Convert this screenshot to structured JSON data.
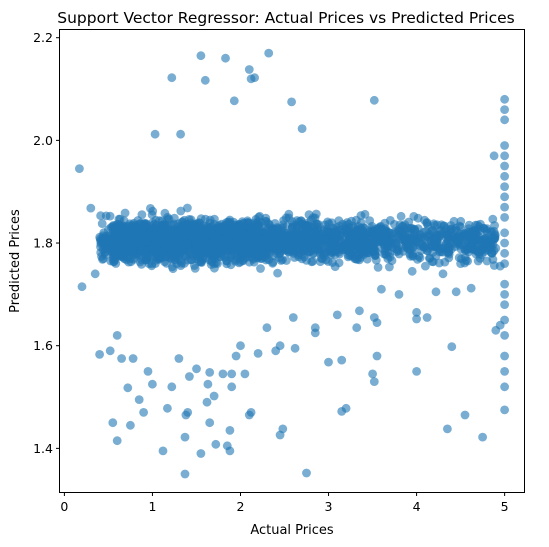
{
  "chart_data": {
    "type": "scatter",
    "title": "Support Vector Regressor: Actual Prices vs Predicted Prices",
    "xlabel": "Actual Prices",
    "ylabel": "Predicted Prices",
    "xlim": [
      -0.05,
      5.22
    ],
    "ylim": [
      1.315,
      2.215
    ],
    "x_ticks": [
      0,
      1,
      2,
      3,
      4,
      5
    ],
    "y_ticks": [
      1.4,
      1.6,
      1.8,
      2.0,
      2.2
    ],
    "x_tick_labels": [
      "0",
      "1",
      "2",
      "3",
      "4",
      "5"
    ],
    "y_tick_labels": [
      "1.4",
      "1.6",
      "1.8",
      "2.0",
      "2.2"
    ],
    "grid": false,
    "legend": "none",
    "marker_color": "#1f77b4",
    "marker_alpha": 0.6,
    "series": [
      {
        "values": [
          [
            1.55,
            2.165
          ],
          [
            1.83,
            2.16
          ],
          [
            2.32,
            2.17
          ],
          [
            1.22,
            2.122
          ],
          [
            1.6,
            2.117
          ],
          [
            2.1,
            2.138
          ],
          [
            2.12,
            2.12
          ],
          [
            2.16,
            2.122
          ],
          [
            1.93,
            2.077
          ],
          [
            2.58,
            2.075
          ],
          [
            3.52,
            2.078
          ],
          [
            2.7,
            2.023
          ],
          [
            1.03,
            2.012
          ],
          [
            1.32,
            2.012
          ],
          [
            0.17,
            1.945
          ],
          [
            4.88,
            1.97
          ],
          [
            5.0,
            2.08
          ],
          [
            5.0,
            2.06
          ],
          [
            5.0,
            2.04
          ],
          [
            5.0,
            1.99
          ],
          [
            5.0,
            1.97
          ],
          [
            5.0,
            1.95
          ],
          [
            5.0,
            1.93
          ],
          [
            5.0,
            1.91
          ],
          [
            5.0,
            1.89
          ],
          [
            5.0,
            1.87
          ],
          [
            5.0,
            1.85
          ],
          [
            5.0,
            1.82
          ],
          [
            5.0,
            1.8
          ],
          [
            5.0,
            1.78
          ],
          [
            5.0,
            1.76
          ],
          [
            5.0,
            1.72
          ],
          [
            5.0,
            1.7
          ],
          [
            5.0,
            1.68
          ],
          [
            5.0,
            1.65
          ],
          [
            5.0,
            1.62
          ],
          [
            5.0,
            1.58
          ],
          [
            5.0,
            1.55
          ],
          [
            5.0,
            1.52
          ],
          [
            5.0,
            1.475
          ],
          [
            0.2,
            1.715
          ],
          [
            0.3,
            1.868
          ],
          [
            0.35,
            1.74
          ],
          [
            0.4,
            1.583
          ],
          [
            0.55,
            1.45
          ],
          [
            0.6,
            1.415
          ],
          [
            0.72,
            1.518
          ],
          [
            0.75,
            1.445
          ],
          [
            0.85,
            1.495
          ],
          [
            0.9,
            1.47
          ],
          [
            1.12,
            1.395
          ],
          [
            1.37,
            1.35
          ],
          [
            1.37,
            1.422
          ],
          [
            1.38,
            1.465
          ],
          [
            1.55,
            1.39
          ],
          [
            1.65,
            1.45
          ],
          [
            1.72,
            1.408
          ],
          [
            1.85,
            1.405
          ],
          [
            1.88,
            1.435
          ],
          [
            1.88,
            1.395
          ],
          [
            2.12,
            1.47
          ],
          [
            2.1,
            1.465
          ],
          [
            2.48,
            1.438
          ],
          [
            2.45,
            1.426
          ],
          [
            2.75,
            1.352
          ],
          [
            3.15,
            1.472
          ],
          [
            3.2,
            1.478
          ],
          [
            3.55,
            1.58
          ],
          [
            3.5,
            1.545
          ],
          [
            3.52,
            1.53
          ],
          [
            4.0,
            1.55
          ],
          [
            4.35,
            1.438
          ],
          [
            4.55,
            1.465
          ],
          [
            4.75,
            1.422
          ],
          [
            4.4,
            1.598
          ],
          [
            3.0,
            1.568
          ],
          [
            3.15,
            1.572
          ],
          [
            3.32,
            1.635
          ],
          [
            3.55,
            1.645
          ],
          [
            3.52,
            1.655
          ],
          [
            4.0,
            1.665
          ],
          [
            4.0,
            1.652
          ],
          [
            4.12,
            1.655
          ],
          [
            4.22,
            1.705
          ],
          [
            4.45,
            1.705
          ],
          [
            4.62,
            1.712
          ],
          [
            4.9,
            1.63
          ],
          [
            4.95,
            1.64
          ],
          [
            2.85,
            1.625
          ],
          [
            2.62,
            1.595
          ],
          [
            2.4,
            1.59
          ],
          [
            2.2,
            1.585
          ],
          [
            2.05,
            1.545
          ],
          [
            1.95,
            1.58
          ],
          [
            1.9,
            1.545
          ],
          [
            1.8,
            1.545
          ],
          [
            1.7,
            1.502
          ],
          [
            1.65,
            1.548
          ],
          [
            1.5,
            1.555
          ],
          [
            1.42,
            1.54
          ],
          [
            1.3,
            1.575
          ],
          [
            1.22,
            1.52
          ],
          [
            1.17,
            1.478
          ],
          [
            1.0,
            1.525
          ],
          [
            0.95,
            1.55
          ],
          [
            0.78,
            1.575
          ],
          [
            0.65,
            1.575
          ],
          [
            0.52,
            1.59
          ],
          [
            0.6,
            1.62
          ],
          [
            1.4,
            1.47
          ],
          [
            1.62,
            1.49
          ],
          [
            1.63,
            1.525
          ],
          [
            1.9,
            1.52
          ],
          [
            2.0,
            1.6
          ],
          [
            2.3,
            1.635
          ],
          [
            2.45,
            1.6
          ],
          [
            2.6,
            1.655
          ],
          [
            2.85,
            1.635
          ],
          [
            3.1,
            1.66
          ],
          [
            3.35,
            1.668
          ],
          [
            3.6,
            1.71
          ],
          [
            3.8,
            1.7
          ],
          [
            3.95,
            1.745
          ],
          [
            4.1,
            1.755
          ],
          [
            4.3,
            1.74
          ],
          [
            4.5,
            1.76
          ],
          [
            4.7,
            1.765
          ],
          [
            4.8,
            1.765
          ],
          [
            4.9,
            1.79
          ],
          [
            4.95,
            1.755
          ]
        ]
      }
    ]
  }
}
